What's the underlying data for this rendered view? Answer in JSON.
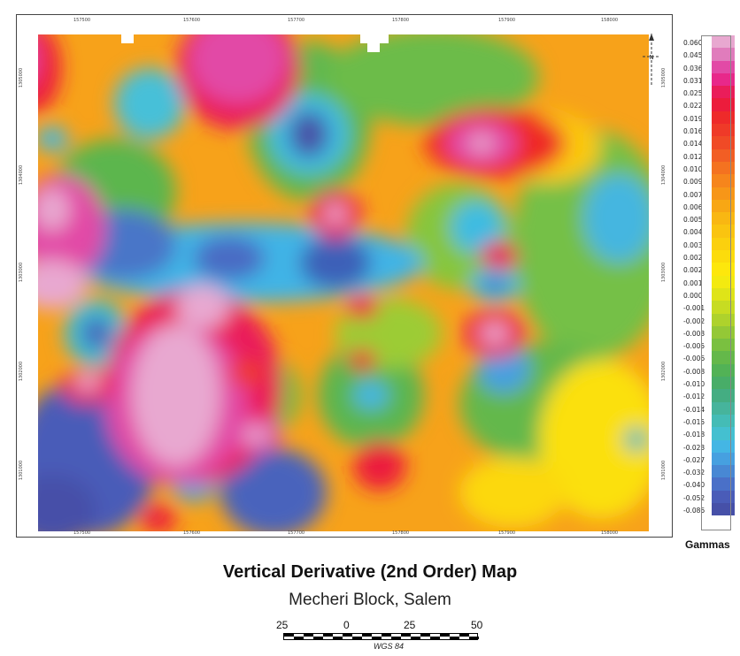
{
  "map": {
    "title": "Vertical Derivative (2nd Order) Map",
    "subtitle": "Mecheri Block, Salem",
    "x_ticks": [
      "157500",
      "157600",
      "157700",
      "157800",
      "157900",
      "158000"
    ],
    "y_ticks": [
      "1305000",
      "1304000",
      "1303000",
      "1302000",
      "1301000"
    ]
  },
  "legend": {
    "unit": "Gammas",
    "values": [
      "0.060",
      "0.045",
      "0.036",
      "0.031",
      "0.025",
      "0.022",
      "0.019",
      "0.016",
      "0.014",
      "0.012",
      "0.010",
      "0.009",
      "0.007",
      "0.006",
      "0.005",
      "0.004",
      "0.003",
      "0.002",
      "0.002",
      "0.001",
      "0.000",
      "-0.001",
      "-0.002",
      "-0.003",
      "-0.005",
      "-0.006",
      "-0.008",
      "-0.010",
      "-0.012",
      "-0.014",
      "-0.015",
      "-0.018",
      "-0.023",
      "-0.027",
      "-0.032",
      "-0.040",
      "-0.052",
      "-0.086"
    ],
    "colors": [
      "#e8a8d0",
      "#e07cbc",
      "#e24aa6",
      "#e8288a",
      "#ea1d5a",
      "#ec1c3c",
      "#ee2a2a",
      "#ef3a28",
      "#f04a26",
      "#f25e24",
      "#f47220",
      "#f6851c",
      "#f79618",
      "#f8a714",
      "#f9b712",
      "#fac410",
      "#fbd00e",
      "#fcdc0c",
      "#fde70c",
      "#f3ea10",
      "#dfe418",
      "#c7dc22",
      "#aed22c",
      "#94c836",
      "#7ac040",
      "#64b84a",
      "#52b256",
      "#48ad68",
      "#44ad82",
      "#46b49c",
      "#44bcb6",
      "#44c0d0",
      "#44b6e4",
      "#46a0e0",
      "#4888d4",
      "#4a70c8",
      "#4a5cb8",
      "#4650a8"
    ]
  },
  "scale_bar": {
    "labels": [
      "25",
      "0",
      "25",
      "50"
    ],
    "units": "WGS 84"
  }
}
